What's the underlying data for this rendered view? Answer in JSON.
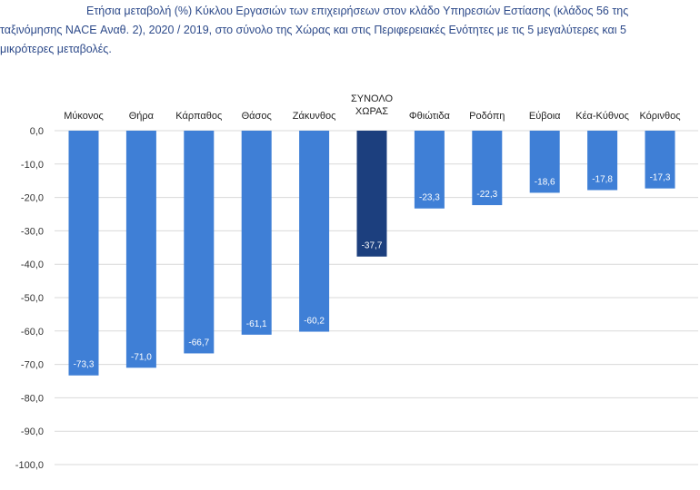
{
  "title": {
    "lines": [
      "Ετήσια μεταβολή (%) Κύκλου Εργασιών των επιχειρήσεων στον κλάδο Υπηρεσιών Εστίασης (κλάδος 56 της",
      "ταξινόμησης NACE Αναθ. 2), 2020 / 2019, στο σύνολο της Χώρας και στις Περιφερειακές Ενότητες με τις 5 μεγαλύτερες και 5",
      "μικρότερες μεταβολές."
    ]
  },
  "colors": {
    "bar": "#3f7fd6",
    "bar_highlight": "#1c3f7e",
    "grid": "#d9d9d9"
  },
  "chart_data": {
    "type": "bar",
    "categories": [
      "Μύκονος",
      "Θήρα",
      "Κάρπαθος",
      "Θάσος",
      "Ζάκυνθος",
      "ΣΥΝΟΛΟ ΧΩΡΑΣ",
      "Φθιώτιδα",
      "Ροδόπη",
      "Εύβοια",
      "Κέα-Κύθνος",
      "Κόρινθος"
    ],
    "values": [
      -73.3,
      -71.0,
      -66.7,
      -61.1,
      -60.2,
      -37.7,
      -23.3,
      -22.3,
      -18.6,
      -17.8,
      -17.3
    ],
    "value_labels": [
      "-73,3",
      "-71,0",
      "-66,7",
      "-61,1",
      "-60,2",
      "-37,7",
      "-23,3",
      "-22,3",
      "-18,6",
      "-17,8",
      "-17,3"
    ],
    "highlight_category": "ΣΥΝΟΛΟ ΧΩΡΑΣ",
    "ylim": [
      -100,
      0
    ],
    "yticks": [
      0,
      -10,
      -20,
      -30,
      -40,
      -50,
      -60,
      -70,
      -80,
      -90,
      -100
    ],
    "ytick_labels": [
      "0,0",
      "-10,0",
      "-20,0",
      "-30,0",
      "-40,0",
      "-50,0",
      "-60,0",
      "-70,0",
      "-80,0",
      "-90,0",
      "-100,0"
    ],
    "grid": true,
    "legend": "none"
  }
}
